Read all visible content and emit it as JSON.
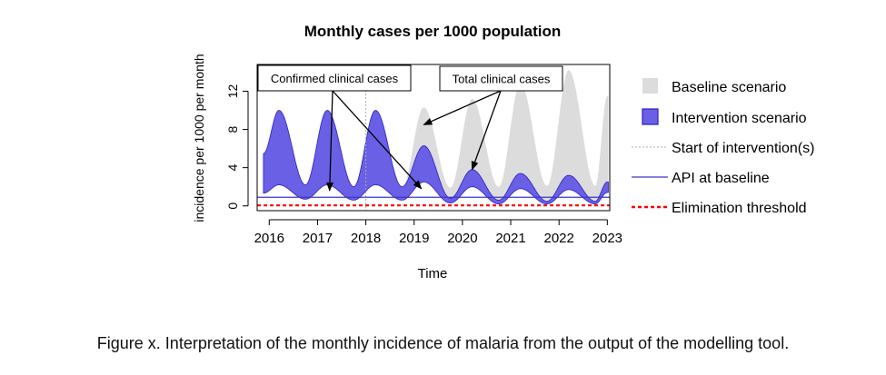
{
  "chart_data": {
    "type": "area",
    "title": "Monthly cases per 1000 population",
    "xlabel": "Time",
    "ylabel": "incidence per 1000 per month",
    "xlim": [
      2015.75,
      2023.05
    ],
    "ylim": [
      -0.5,
      14.8
    ],
    "x_ticks": [
      2016,
      2017,
      2018,
      2019,
      2020,
      2021,
      2022,
      2023
    ],
    "x_tick_labels": [
      "2016",
      "2017",
      "2018",
      "2019",
      "2020",
      "2021",
      "2022",
      "2023"
    ],
    "y_ticks": [
      0,
      4,
      8,
      12
    ],
    "y_tick_labels": [
      "0",
      "4",
      "8",
      "12"
    ],
    "grid": false,
    "legend_position": "right",
    "colors": {
      "baseline_fill": "#dcdcdc",
      "intervention_fill": "#6a60e6",
      "intervention_edge": "#2a1fc4",
      "api_line": "#3c36c8",
      "start_line": "#aaaaaa",
      "threshold": "#ff0000"
    },
    "series": [
      {
        "name": "Baseline scenario",
        "kind": "band",
        "peak_x": [
          2016.2,
          2017.2,
          2018.2,
          2019.2,
          2020.2,
          2021.2,
          2022.2,
          2023.0
        ],
        "upper_peaks": [
          10.0,
          10.0,
          10.0,
          10.3,
          11.2,
          12.8,
          14.2,
          11.5
        ],
        "lower_peaks": [
          2.2,
          2.2,
          2.2,
          3.0,
          3.3,
          3.3,
          3.2,
          2.4
        ],
        "trough_upper": [
          2.2,
          2.0,
          2.0,
          1.9,
          2.0,
          2.1,
          2.1
        ],
        "trough_lower": [
          0.7,
          0.6,
          0.6,
          0.6,
          0.6,
          0.6,
          0.6
        ]
      },
      {
        "name": "Intervention scenario",
        "kind": "band",
        "peak_x": [
          2016.2,
          2017.2,
          2018.2,
          2019.2,
          2020.2,
          2021.2,
          2022.2,
          2023.0
        ],
        "upper_peaks": [
          10.0,
          10.0,
          10.0,
          6.3,
          3.8,
          3.4,
          3.2,
          2.5
        ],
        "lower_peaks": [
          2.2,
          2.2,
          2.2,
          2.5,
          2.0,
          1.8,
          1.7,
          1.4
        ],
        "trough_upper": [
          2.2,
          2.0,
          2.0,
          0.8,
          0.6,
          0.5,
          0.5
        ],
        "trough_lower": [
          0.7,
          0.6,
          0.6,
          0.3,
          0.2,
          0.2,
          0.2
        ]
      },
      {
        "name": "Start of intervention(s)",
        "kind": "vline",
        "x": 2018.0
      },
      {
        "name": "API at baseline",
        "kind": "hline",
        "y": 0.9
      },
      {
        "name": "Elimination threshold",
        "kind": "hline",
        "y": 0.05
      }
    ],
    "annotations": [
      {
        "label": "Confirmed clinical cases",
        "arrows_to": [
          [
            2017.25,
            1.6
          ],
          [
            2019.15,
            1.8
          ]
        ]
      },
      {
        "label": "Total clinical cases",
        "arrows_to": [
          [
            2019.2,
            8.5
          ],
          [
            2020.2,
            3.8
          ]
        ]
      }
    ]
  },
  "caption": "Figure x. Interpretation of the monthly incidence of malaria from the output of the modelling tool."
}
